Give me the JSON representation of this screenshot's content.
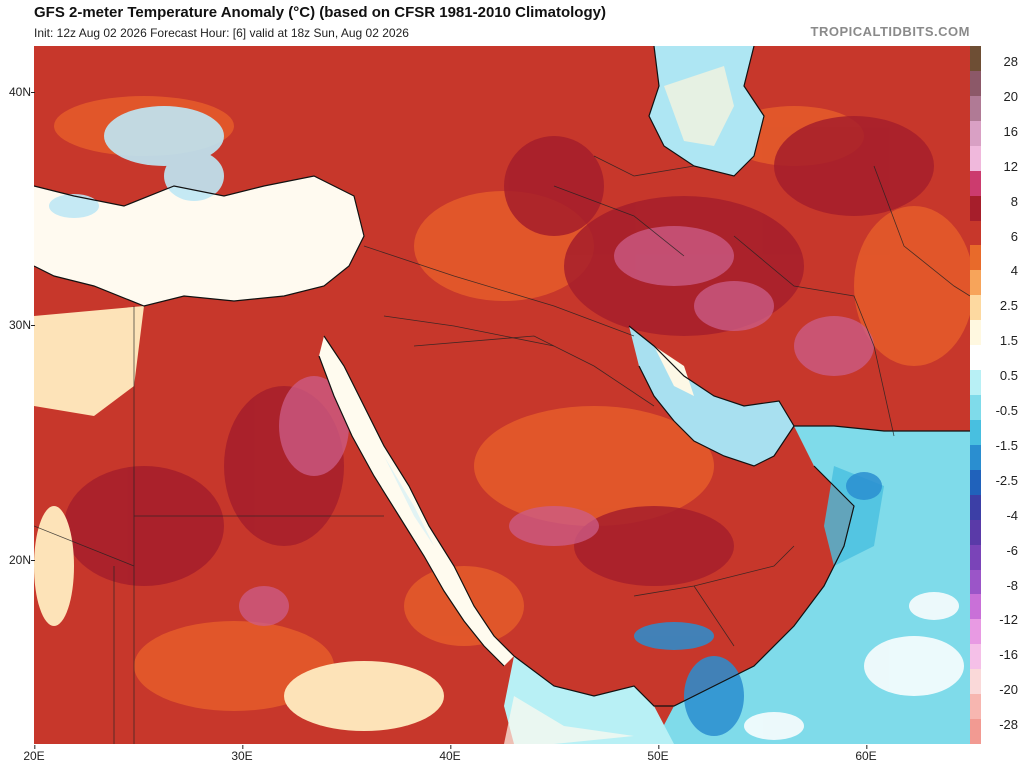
{
  "header": {
    "title": "GFS 2-meter Temperature Anomaly (°C) (based on CFSR 1981-2010 Climatology)",
    "subtitle": "Init: 12z Aug 02 2026   Forecast Hour: [6]   valid at 18z Sun, Aug 02 2026",
    "brand": "TROPICALTIDBITS.COM"
  },
  "axes": {
    "lat_labels": [
      "40N",
      "30N",
      "20N"
    ],
    "lon_labels": [
      "20E",
      "30E",
      "40E",
      "50E",
      "60E"
    ]
  },
  "colorbar": {
    "labels": [
      "28",
      "20",
      "16",
      "12",
      "8",
      "6",
      "4",
      "2.5",
      "1.5",
      "0.5",
      "-0.5",
      "-1.5",
      "-2.5",
      "-4",
      "-6",
      "-8",
      "-12",
      "-16",
      "-20",
      "-28"
    ],
    "colors": [
      "#6e4e34",
      "#8c5868",
      "#b07a95",
      "#d9a0c4",
      "#f0b8dc",
      "#cc3b6e",
      "#a61e2b",
      "#c7372b",
      "#e86a2a",
      "#f7a45a",
      "#fdd9a0",
      "#fff8e0",
      "#ffffff",
      "#b8f0f5",
      "#7fdbea",
      "#48bfe0",
      "#2a8ed0",
      "#2062bb",
      "#3c3fa6",
      "#5a3aa8",
      "#7a44b8",
      "#9b55c8",
      "#c970d8",
      "#e89ae3",
      "#f5c0e8",
      "#fad9d9",
      "#f7b6b0",
      "#f29a92"
    ]
  }
}
